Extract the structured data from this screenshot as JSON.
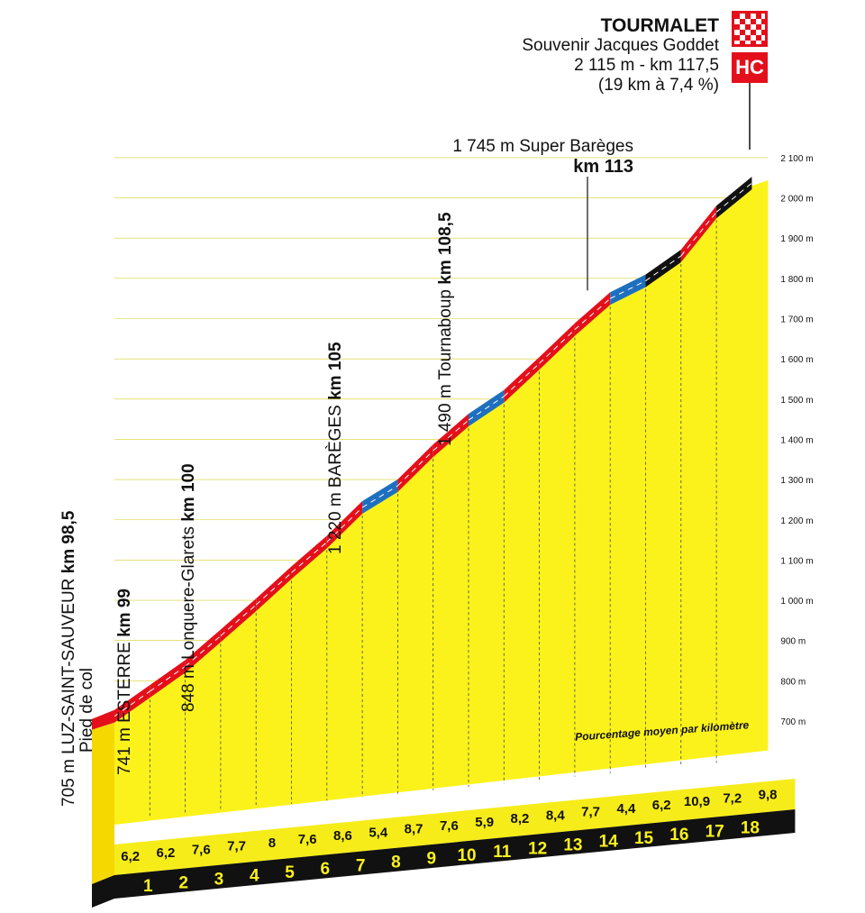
{
  "summit": {
    "name": "TOURMALET",
    "subtitle": "Souvenir Jacques Goddet",
    "altitude_km": "2 115 m - km 117,5",
    "climb": "(19 km à 7,4 %)",
    "category": "HC"
  },
  "annotations": [
    {
      "name_text": "705 m LUZ-SAINT-SAUVEUR ",
      "km_text": "km 98,5",
      "extra_text": "Pied de col"
    },
    {
      "name_text": "741 m ESTERRE ",
      "km_text": "km 99",
      "extra_text": ""
    },
    {
      "name_text": "848 m Lonquere-Glarets ",
      "km_text": "km 100",
      "extra_text": ""
    },
    {
      "name_text": "1 220 m BARÈGES ",
      "km_text": "km 105",
      "extra_text": ""
    },
    {
      "name_text": "1 490 m Tournaboup ",
      "km_text": "km 108,5",
      "extra_text": ""
    },
    {
      "name_text": "1 745 m Super Barèges",
      "km_text": "km 113",
      "extra_text": ""
    }
  ],
  "legend_note": "Pourcentage moyen par kilomètre",
  "colors": {
    "fill": "#fbf21c",
    "road_red": "#e3101b",
    "road_blue": "#1e6fbf",
    "road_black": "#111111",
    "base": "#111111",
    "front_face": "#f4d800"
  },
  "chart_data": {
    "type": "area",
    "x": [
      0,
      1,
      2,
      3,
      4,
      5,
      6,
      7,
      8,
      9,
      10,
      11,
      12,
      13,
      14,
      15,
      16,
      17,
      18
    ],
    "y": [
      705,
      767,
      829,
      905,
      982,
      1062,
      1138,
      1224,
      1278,
      1365,
      1441,
      1500,
      1582,
      1666,
      1743,
      1787,
      1849,
      1958,
      2030
    ],
    "x_tick_labels": [
      "1",
      "2",
      "3",
      "4",
      "5",
      "6",
      "7",
      "8",
      "9",
      "10",
      "11",
      "12",
      "13",
      "14",
      "15",
      "16",
      "17",
      "18"
    ],
    "gradients": [
      "6,2",
      "6,2",
      "7,6",
      "7,7",
      "8",
      "7,6",
      "8,6",
      "5,4",
      "8,7",
      "7,6",
      "5,9",
      "8,2",
      "8,4",
      "7,7",
      "4,4",
      "6,2",
      "10,9",
      "7,2",
      "9,8"
    ],
    "y_ticks": [
      700,
      800,
      900,
      1000,
      1100,
      1200,
      1300,
      1400,
      1500,
      1600,
      1700,
      1800,
      1900,
      2000,
      2100
    ],
    "y_tick_labels": [
      "700 m",
      "800 m",
      "900 m",
      "1 000 m",
      "1 100 m",
      "1 200 m",
      "1 300 m",
      "1 400 m",
      "1 500 m",
      "1 600 m",
      "1 700 m",
      "1 800 m",
      "1 900 m",
      "2 000 m",
      "2 100 m"
    ],
    "ylim": [
      700,
      2100
    ]
  }
}
